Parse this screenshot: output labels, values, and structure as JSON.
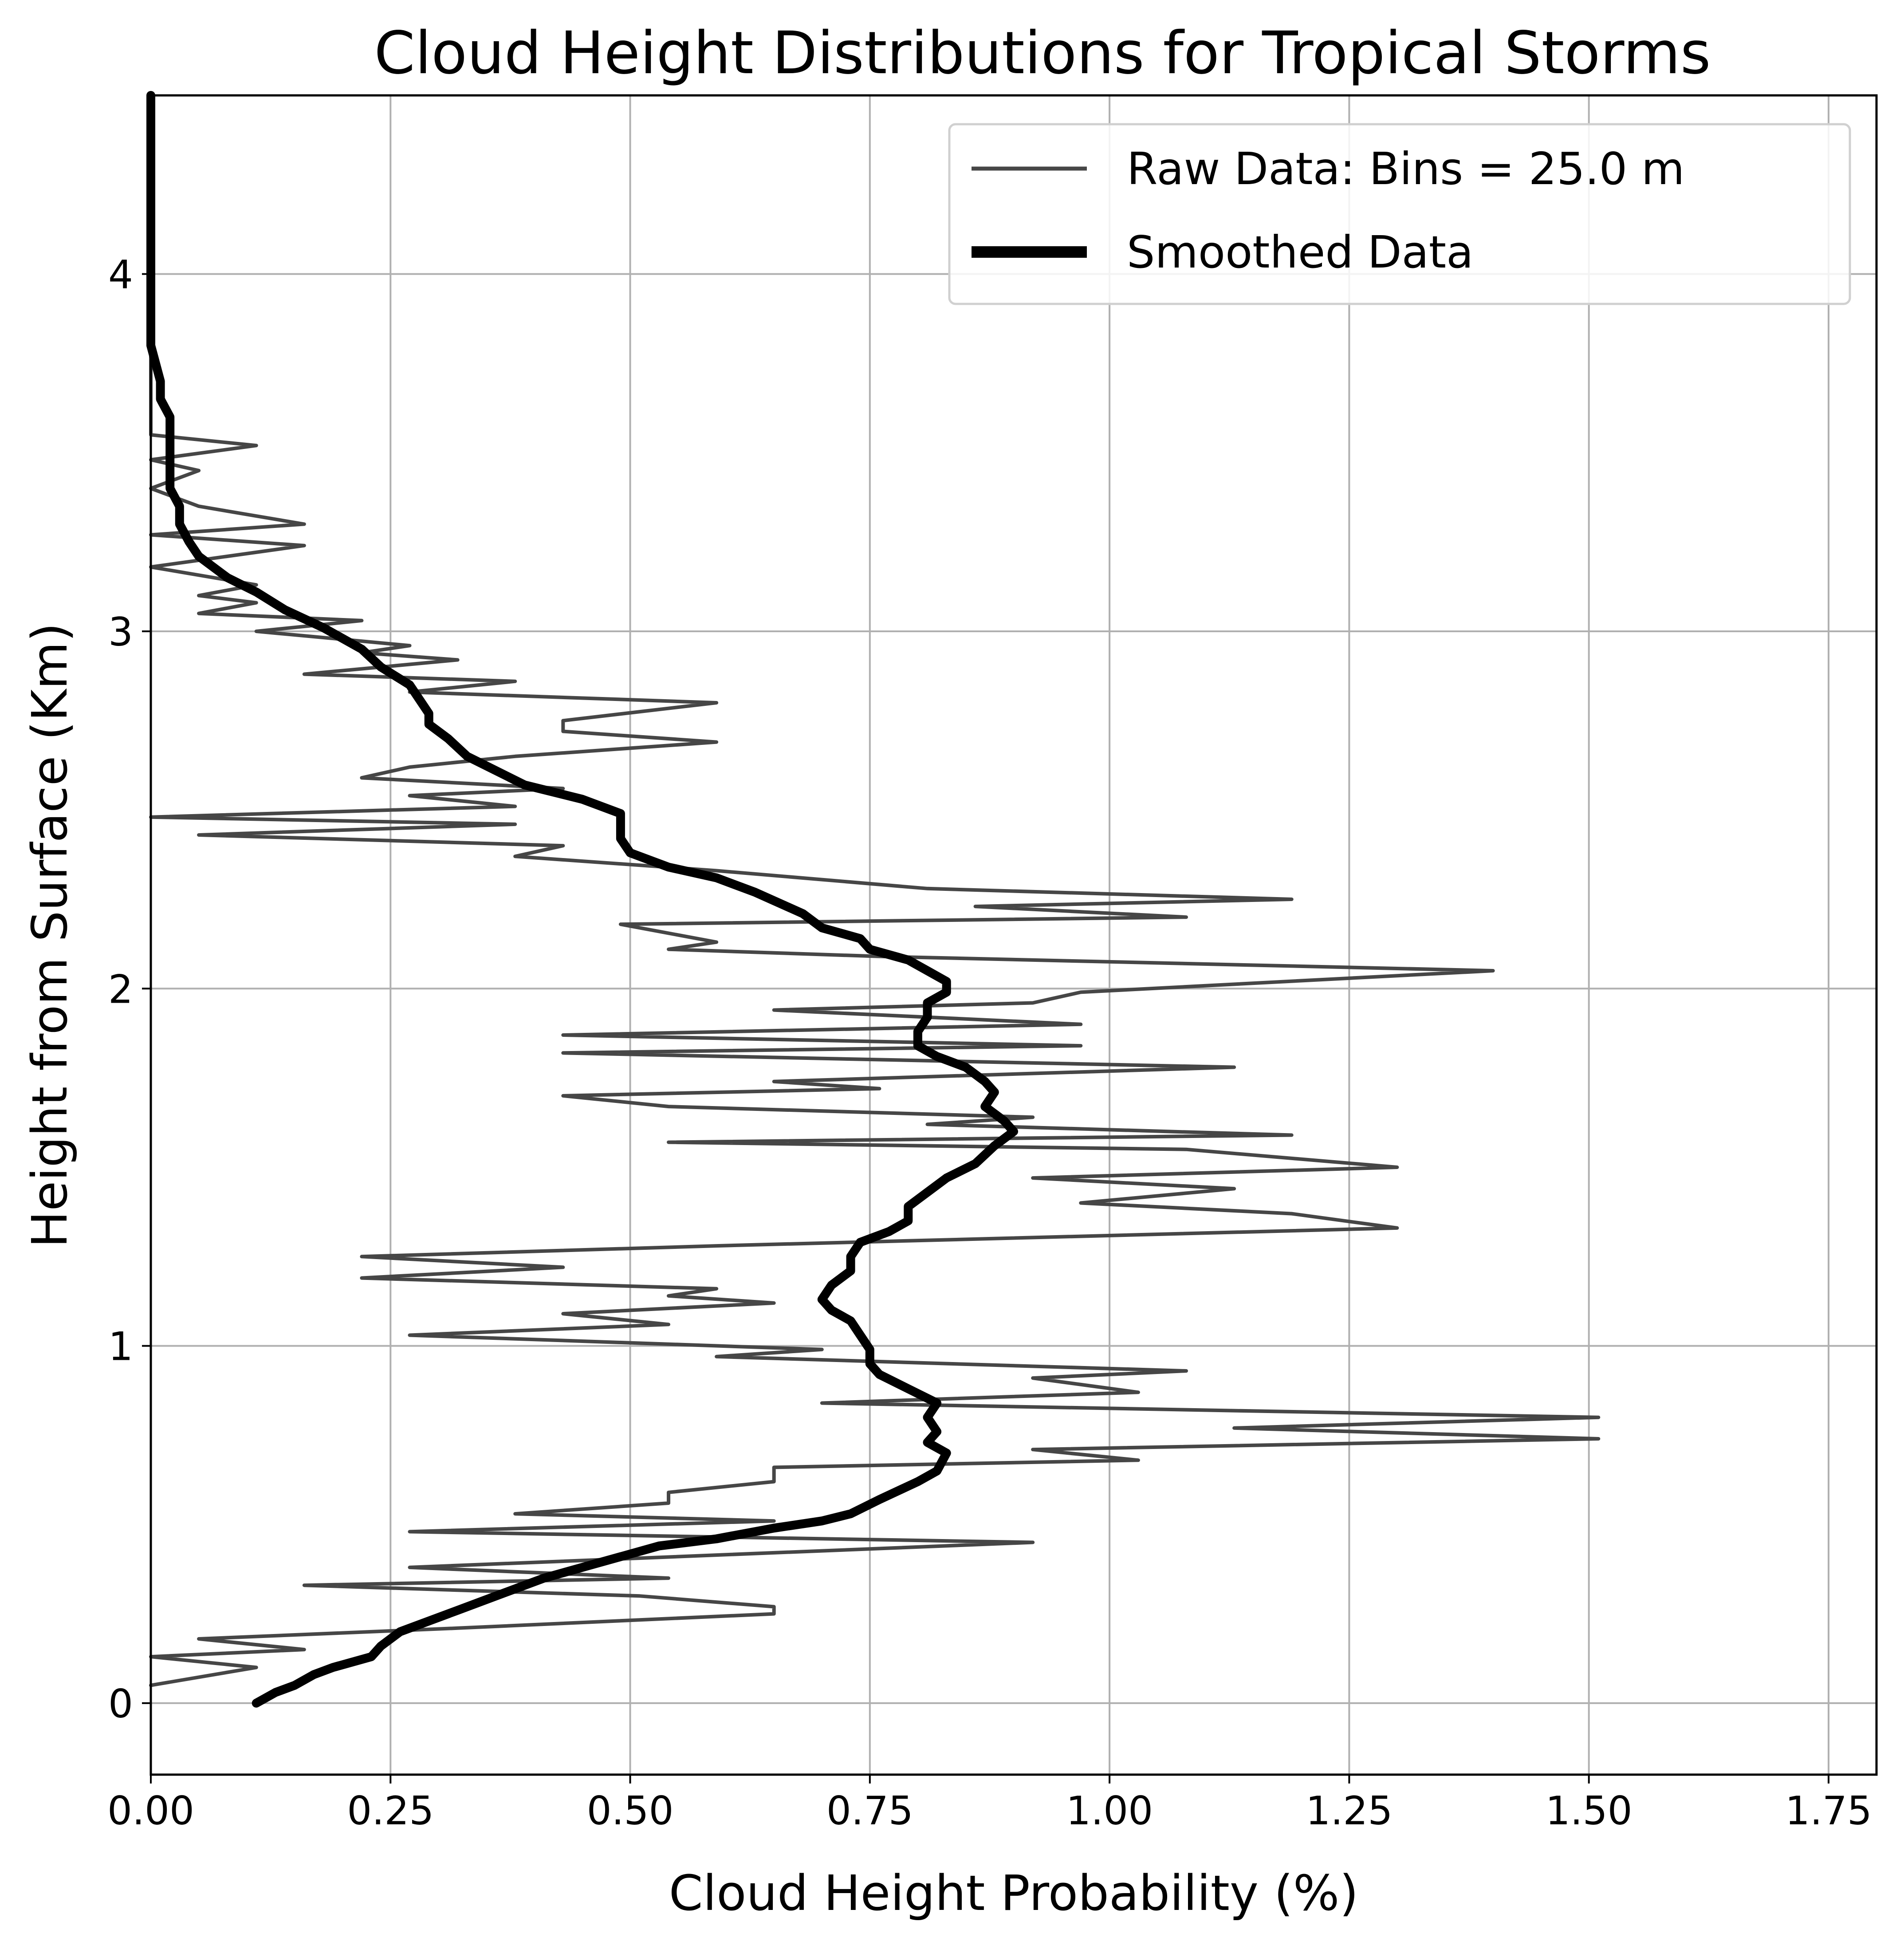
{
  "chart_data": {
    "type": "line",
    "title": "Cloud Height Distributions for Tropical Storms",
    "xlabel": "Cloud Height Probability (%)",
    "ylabel": "Height from Surface (Km)",
    "xlim": [
      0,
      1.8
    ],
    "ylim": [
      -0.2,
      4.5
    ],
    "grid": true,
    "legend_position": "top-right",
    "x_ticks": [
      "0.00",
      "0.25",
      "0.50",
      "0.75",
      "1.00",
      "1.25",
      "1.50",
      "1.75"
    ],
    "y_ticks": [
      "0",
      "1",
      "2",
      "3",
      "4"
    ],
    "series": [
      {
        "name": "Raw Data: Bins = 25.0 m",
        "color": "#464646",
        "style": "thin",
        "points": [
          [
            0.0,
            0.05
          ],
          [
            0.11,
            0.1
          ],
          [
            0.0,
            0.13
          ],
          [
            0.16,
            0.15
          ],
          [
            0.05,
            0.18
          ],
          [
            0.32,
            0.21
          ],
          [
            0.65,
            0.25
          ],
          [
            0.65,
            0.27
          ],
          [
            0.51,
            0.3
          ],
          [
            0.16,
            0.33
          ],
          [
            0.54,
            0.35
          ],
          [
            0.27,
            0.38
          ],
          [
            0.92,
            0.45
          ],
          [
            0.27,
            0.48
          ],
          [
            0.65,
            0.51
          ],
          [
            0.38,
            0.53
          ],
          [
            0.54,
            0.56
          ],
          [
            0.54,
            0.59
          ],
          [
            0.65,
            0.62
          ],
          [
            0.65,
            0.66
          ],
          [
            1.03,
            0.68
          ],
          [
            0.92,
            0.71
          ],
          [
            1.51,
            0.74
          ],
          [
            1.13,
            0.77
          ],
          [
            1.51,
            0.8
          ],
          [
            0.7,
            0.84
          ],
          [
            1.03,
            0.87
          ],
          [
            0.92,
            0.91
          ],
          [
            1.08,
            0.93
          ],
          [
            0.59,
            0.97
          ],
          [
            0.7,
            0.99
          ],
          [
            0.27,
            1.03
          ],
          [
            0.54,
            1.06
          ],
          [
            0.43,
            1.09
          ],
          [
            0.65,
            1.12
          ],
          [
            0.54,
            1.14
          ],
          [
            0.59,
            1.16
          ],
          [
            0.22,
            1.19
          ],
          [
            0.43,
            1.22
          ],
          [
            0.22,
            1.25
          ],
          [
            0.59,
            1.28
          ],
          [
            1.3,
            1.33
          ],
          [
            1.19,
            1.37
          ],
          [
            0.97,
            1.4
          ],
          [
            1.13,
            1.44
          ],
          [
            0.92,
            1.47
          ],
          [
            1.3,
            1.5
          ],
          [
            1.08,
            1.55
          ],
          [
            0.54,
            1.57
          ],
          [
            1.19,
            1.59
          ],
          [
            0.81,
            1.62
          ],
          [
            0.92,
            1.64
          ],
          [
            0.54,
            1.67
          ],
          [
            0.43,
            1.7
          ],
          [
            0.76,
            1.72
          ],
          [
            0.65,
            1.74
          ],
          [
            1.13,
            1.78
          ],
          [
            0.43,
            1.82
          ],
          [
            0.97,
            1.84
          ],
          [
            0.43,
            1.87
          ],
          [
            0.97,
            1.9
          ],
          [
            0.65,
            1.94
          ],
          [
            0.92,
            1.96
          ],
          [
            0.97,
            1.99
          ],
          [
            1.4,
            2.05
          ],
          [
            0.76,
            2.09
          ],
          [
            0.54,
            2.11
          ],
          [
            0.59,
            2.13
          ],
          [
            0.49,
            2.18
          ],
          [
            1.08,
            2.2
          ],
          [
            0.86,
            2.23
          ],
          [
            1.19,
            2.25
          ],
          [
            0.81,
            2.28
          ],
          [
            0.59,
            2.33
          ],
          [
            0.38,
            2.37
          ],
          [
            0.43,
            2.4
          ],
          [
            0.05,
            2.43
          ],
          [
            0.38,
            2.46
          ],
          [
            0.0,
            2.48
          ],
          [
            0.38,
            2.51
          ],
          [
            0.27,
            2.54
          ],
          [
            0.43,
            2.56
          ],
          [
            0.22,
            2.59
          ],
          [
            0.27,
            2.62
          ],
          [
            0.38,
            2.65
          ],
          [
            0.59,
            2.69
          ],
          [
            0.43,
            2.72
          ],
          [
            0.43,
            2.75
          ],
          [
            0.59,
            2.8
          ],
          [
            0.27,
            2.83
          ],
          [
            0.38,
            2.86
          ],
          [
            0.16,
            2.88
          ],
          [
            0.32,
            2.92
          ],
          [
            0.22,
            2.94
          ],
          [
            0.27,
            2.96
          ],
          [
            0.11,
            3.0
          ],
          [
            0.22,
            3.03
          ],
          [
            0.05,
            3.05
          ],
          [
            0.11,
            3.08
          ],
          [
            0.05,
            3.1
          ],
          [
            0.11,
            3.13
          ],
          [
            0.0,
            3.18
          ],
          [
            0.16,
            3.24
          ],
          [
            0.0,
            3.27
          ],
          [
            0.16,
            3.3
          ],
          [
            0.05,
            3.35
          ],
          [
            0.0,
            3.4
          ],
          [
            0.05,
            3.45
          ],
          [
            0.0,
            3.48
          ],
          [
            0.11,
            3.52
          ],
          [
            0.0,
            3.55
          ],
          [
            0.0,
            4.5
          ]
        ]
      },
      {
        "name": "Smoothed Data",
        "color": "#000000",
        "style": "thick",
        "points": [
          [
            0.11,
            0.0
          ],
          [
            0.13,
            0.03
          ],
          [
            0.15,
            0.05
          ],
          [
            0.17,
            0.08
          ],
          [
            0.19,
            0.1
          ],
          [
            0.23,
            0.13
          ],
          [
            0.24,
            0.16
          ],
          [
            0.26,
            0.2
          ],
          [
            0.29,
            0.23
          ],
          [
            0.32,
            0.26
          ],
          [
            0.35,
            0.29
          ],
          [
            0.38,
            0.32
          ],
          [
            0.41,
            0.35
          ],
          [
            0.45,
            0.38
          ],
          [
            0.49,
            0.41
          ],
          [
            0.53,
            0.44
          ],
          [
            0.59,
            0.46
          ],
          [
            0.65,
            0.49
          ],
          [
            0.7,
            0.51
          ],
          [
            0.73,
            0.53
          ],
          [
            0.76,
            0.57
          ],
          [
            0.8,
            0.62
          ],
          [
            0.82,
            0.65
          ],
          [
            0.83,
            0.7
          ],
          [
            0.81,
            0.73
          ],
          [
            0.82,
            0.76
          ],
          [
            0.81,
            0.8
          ],
          [
            0.82,
            0.84
          ],
          [
            0.79,
            0.88
          ],
          [
            0.76,
            0.92
          ],
          [
            0.75,
            0.95
          ],
          [
            0.75,
            0.99
          ],
          [
            0.74,
            1.03
          ],
          [
            0.73,
            1.07
          ],
          [
            0.71,
            1.1
          ],
          [
            0.7,
            1.13
          ],
          [
            0.71,
            1.17
          ],
          [
            0.73,
            1.21
          ],
          [
            0.73,
            1.25
          ],
          [
            0.74,
            1.29
          ],
          [
            0.77,
            1.32
          ],
          [
            0.79,
            1.35
          ],
          [
            0.79,
            1.39
          ],
          [
            0.81,
            1.43
          ],
          [
            0.83,
            1.47
          ],
          [
            0.86,
            1.51
          ],
          [
            0.88,
            1.56
          ],
          [
            0.9,
            1.6
          ],
          [
            0.89,
            1.63
          ],
          [
            0.87,
            1.67
          ],
          [
            0.88,
            1.71
          ],
          [
            0.87,
            1.74
          ],
          [
            0.85,
            1.78
          ],
          [
            0.82,
            1.81
          ],
          [
            0.8,
            1.84
          ],
          [
            0.8,
            1.88
          ],
          [
            0.81,
            1.92
          ],
          [
            0.81,
            1.96
          ],
          [
            0.83,
            1.99
          ],
          [
            0.83,
            2.02
          ],
          [
            0.81,
            2.05
          ],
          [
            0.79,
            2.08
          ],
          [
            0.75,
            2.11
          ],
          [
            0.74,
            2.14
          ],
          [
            0.7,
            2.17
          ],
          [
            0.68,
            2.21
          ],
          [
            0.63,
            2.27
          ],
          [
            0.59,
            2.31
          ],
          [
            0.54,
            2.34
          ],
          [
            0.5,
            2.38
          ],
          [
            0.49,
            2.42
          ],
          [
            0.49,
            2.46
          ],
          [
            0.49,
            2.49
          ],
          [
            0.45,
            2.53
          ],
          [
            0.39,
            2.57
          ],
          [
            0.36,
            2.61
          ],
          [
            0.33,
            2.65
          ],
          [
            0.31,
            2.7
          ],
          [
            0.29,
            2.74
          ],
          [
            0.29,
            2.77
          ],
          [
            0.28,
            2.81
          ],
          [
            0.27,
            2.85
          ],
          [
            0.24,
            2.9
          ],
          [
            0.22,
            2.95
          ],
          [
            0.18,
            3.01
          ],
          [
            0.14,
            3.06
          ],
          [
            0.11,
            3.11
          ],
          [
            0.08,
            3.15
          ],
          [
            0.05,
            3.21
          ],
          [
            0.04,
            3.25
          ],
          [
            0.03,
            3.3
          ],
          [
            0.03,
            3.35
          ],
          [
            0.02,
            3.4
          ],
          [
            0.02,
            3.45
          ],
          [
            0.02,
            3.5
          ],
          [
            0.02,
            3.55
          ],
          [
            0.02,
            3.6
          ],
          [
            0.01,
            3.65
          ],
          [
            0.01,
            3.7
          ],
          [
            0.0,
            3.8
          ],
          [
            0.0,
            4.0
          ],
          [
            0.0,
            4.5
          ]
        ]
      }
    ]
  }
}
